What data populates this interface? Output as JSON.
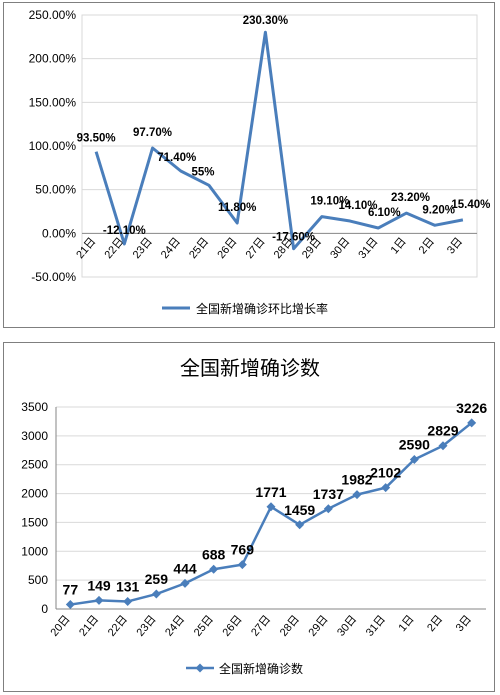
{
  "chart_data": [
    {
      "type": "line",
      "title": "",
      "categories": [
        "21日",
        "22日",
        "23日",
        "24日",
        "25日",
        "26日",
        "27日",
        "28日",
        "29日",
        "30日",
        "31日",
        "1日",
        "2日",
        "3日"
      ],
      "series": [
        {
          "name": "全国新增确诊环比增长率",
          "values": [
            93.5,
            -12.1,
            97.7,
            71.4,
            55,
            11.8,
            230.3,
            -17.6,
            19.1,
            14.1,
            6.1,
            23.2,
            9.2,
            15.4
          ],
          "labels": [
            "93.50%",
            "-12.10%",
            "97.70%",
            "71.40%",
            "55%",
            "11.80%",
            "230.30%",
            "-17.60%",
            "19.10%",
            "14.10%",
            "6.10%",
            "23.20%",
            "9.20%",
            "15.40%"
          ],
          "color": "#4a7ebb"
        }
      ],
      "ylim": [
        -50,
        250
      ],
      "yticks": [
        250,
        200,
        150,
        100,
        50,
        0,
        -50
      ],
      "ytick_labels": [
        "250.00%",
        "200.00%",
        "150.00%",
        "100.00%",
        "50.00%",
        "0.00%",
        "-50.00%"
      ],
      "grid": true,
      "legend": "bottom"
    },
    {
      "type": "line",
      "title": "全国新增确诊数",
      "categories": [
        "20日",
        "21日",
        "22日",
        "23日",
        "24日",
        "25日",
        "26日",
        "27日",
        "28日",
        "29日",
        "30日",
        "31日",
        "1日",
        "2日",
        "3日"
      ],
      "series": [
        {
          "name": "全国新增确诊数",
          "values": [
            77,
            149,
            131,
            259,
            444,
            688,
            769,
            1771,
            1459,
            1737,
            1982,
            2102,
            2590,
            2829,
            3226
          ],
          "labels": [
            "77",
            "149",
            "131",
            "259",
            "444",
            "688",
            "769",
            "1771",
            "1459",
            "1737",
            "1982",
            "2102",
            "2590",
            "2829",
            "3226"
          ],
          "color": "#4a7ebb",
          "marker": "diamond"
        }
      ],
      "ylim": [
        0,
        3500
      ],
      "yticks": [
        3500,
        3000,
        2500,
        2000,
        1500,
        1000,
        500,
        0
      ],
      "ytick_labels": [
        "3500",
        "3000",
        "2500",
        "2000",
        "1500",
        "1000",
        "500",
        "0"
      ],
      "grid": true,
      "legend": "bottom"
    }
  ]
}
